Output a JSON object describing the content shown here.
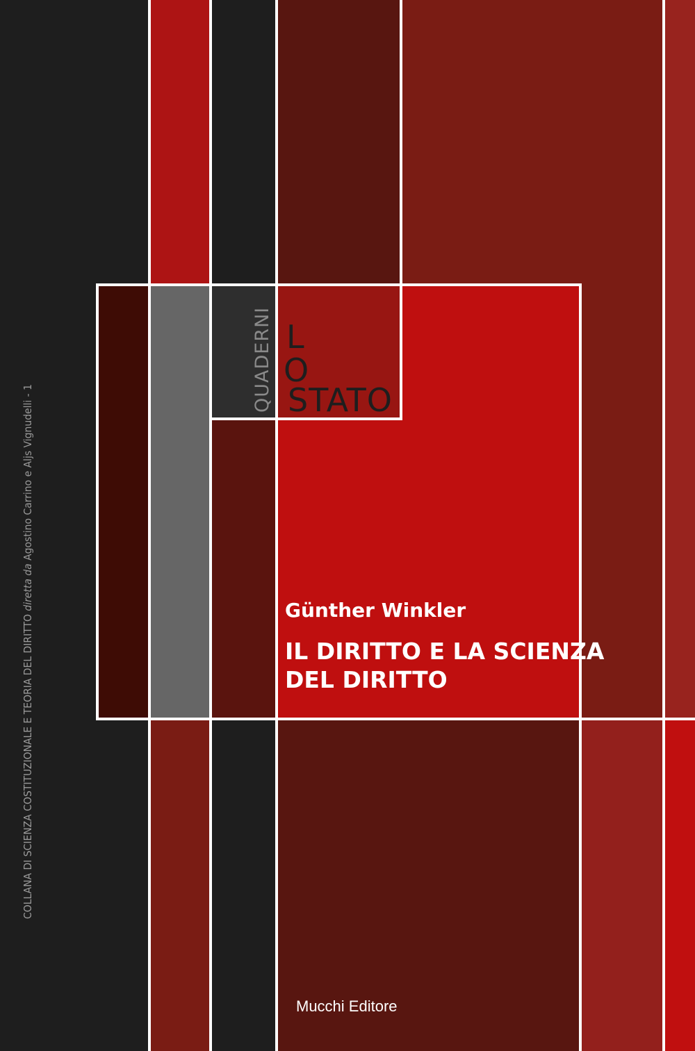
{
  "series_label": {
    "prefix": "COLLANA DI SCIENZA COSTITUZIONALE E TEORIA DEL DIRITTO ",
    "italic": "diretta da",
    "suffix": " Agostino Carrino e Aljs Vignudelli - 1"
  },
  "logo": {
    "quaderni": "QUADERNI",
    "lo_l": "L",
    "lo_o": "O",
    "stato": "STATO"
  },
  "author": "Günther Winkler",
  "title_line1": "IL DIRITTO E LA SCIENZA",
  "title_line2": "DEL DIRITTO",
  "publisher": "Mucchi Editore",
  "colors": {
    "dark": "#1e1e1e",
    "red": "#bf0f0f",
    "maroon": "#581610",
    "brown_red": "#7a1c14"
  }
}
